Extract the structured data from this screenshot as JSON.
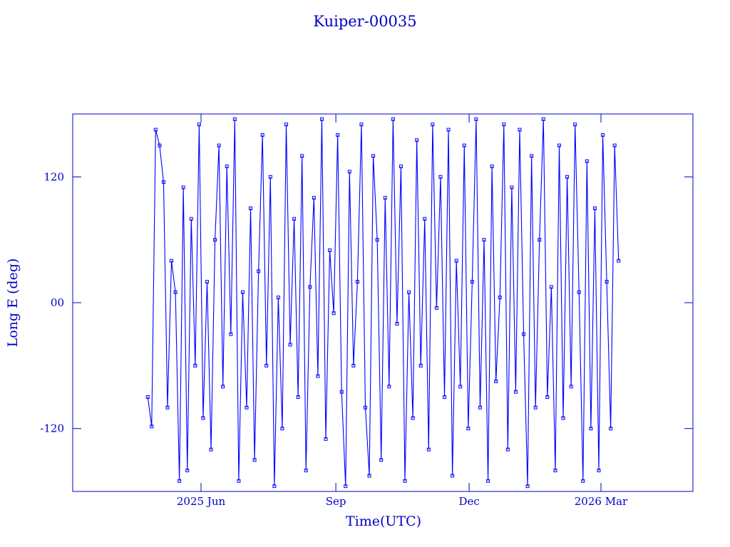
{
  "chart_data": {
    "type": "line",
    "title": "Kuiper-00035",
    "xlabel": "Time(UTC)",
    "ylabel": "Long E (deg)",
    "color": "#0000ff",
    "markers": true,
    "xlim": [
      2025.1737,
      2026.3336
    ],
    "ylim": [
      -180,
      180
    ],
    "xticks": [
      {
        "value": 2025.4137,
        "label": "2025 Jun"
      },
      {
        "value": 2025.6658,
        "label": "Sep"
      },
      {
        "value": 2025.9151,
        "label": "Dec"
      },
      {
        "value": 2026.1616,
        "label": "2026 Mar"
      }
    ],
    "yticks": [
      -120,
      {
        "value": 0,
        "label": "00"
      },
      120
    ],
    "x": [
      2025.314,
      2025.3214,
      2025.3288,
      2025.3362,
      2025.3436,
      2025.351,
      2025.3584,
      2025.3658,
      2025.3732,
      2025.3806,
      2025.388,
      2025.3954,
      2025.4028,
      2025.4102,
      2025.4176,
      2025.425,
      2025.4324,
      2025.4398,
      2025.4472,
      2025.4546,
      2025.462,
      2025.4694,
      2025.4768,
      2025.4842,
      2025.4916,
      2025.499,
      2025.5064,
      2025.5138,
      2025.5212,
      2025.5286,
      2025.536,
      2025.5434,
      2025.5508,
      2025.5582,
      2025.5656,
      2025.573,
      2025.5804,
      2025.5878,
      2025.5952,
      2025.6026,
      2025.61,
      2025.6174,
      2025.6248,
      2025.6322,
      2025.6396,
      2025.647,
      2025.6544,
      2025.6618,
      2025.6692,
      2025.6766,
      2025.684,
      2025.6914,
      2025.6988,
      2025.7062,
      2025.7136,
      2025.721,
      2025.7284,
      2025.7358,
      2025.7432,
      2025.7506,
      2025.758,
      2025.7654,
      2025.7728,
      2025.7802,
      2025.7876,
      2025.795,
      2025.8024,
      2025.8098,
      2025.8172,
      2025.8246,
      2025.832,
      2025.8394,
      2025.8468,
      2025.8542,
      2025.8616,
      2025.869,
      2025.8764,
      2025.8838,
      2025.8912,
      2025.8986,
      2025.906,
      2025.9134,
      2025.9208,
      2025.9282,
      2025.9356,
      2025.943,
      2025.9504,
      2025.9578,
      2025.9652,
      2025.9726,
      2025.98,
      2025.9874,
      2025.9948,
      2026.0022,
      2026.0096,
      2026.017,
      2026.0244,
      2026.0318,
      2026.0392,
      2026.0466,
      2026.054,
      2026.0614,
      2026.0688,
      2026.0762,
      2026.0836,
      2026.091,
      2026.0984,
      2026.1058,
      2026.1132,
      2026.1206,
      2026.128,
      2026.1354,
      2026.1428,
      2026.1502,
      2026.1576,
      2026.165,
      2026.1724,
      2026.1798,
      2026.1872,
      2026.1946
    ],
    "values": [
      -90,
      -118,
      165,
      150,
      115,
      -100,
      40,
      10,
      -170,
      110,
      -160,
      80,
      -60,
      170,
      -110,
      20,
      -140,
      60,
      150,
      -80,
      130,
      -30,
      175,
      -170,
      10,
      -100,
      90,
      -150,
      30,
      160,
      -60,
      120,
      -175,
      5,
      -120,
      170,
      -40,
      80,
      -90,
      140,
      -160,
      15,
      100,
      -70,
      175,
      -130,
      50,
      -10,
      160,
      -85,
      -175,
      125,
      -60,
      20,
      170,
      -100,
      -165,
      140,
      60,
      -150,
      100,
      -80,
      175,
      -20,
      130,
      -170,
      10,
      -110,
      155,
      -60,
      80,
      -140,
      170,
      -5,
      120,
      -90,
      165,
      -165,
      40,
      -80,
      150,
      -120,
      20,
      175,
      -100,
      60,
      -170,
      130,
      -75,
      5,
      170,
      -140,
      110,
      -85,
      165,
      -30,
      -175,
      140,
      -100,
      60,
      175,
      -90,
      15,
      -160,
      150,
      -110,
      120,
      -80,
      170,
      10,
      -170,
      135,
      -120,
      90,
      -160,
      160,
      20,
      -120,
      150,
      40
    ]
  }
}
